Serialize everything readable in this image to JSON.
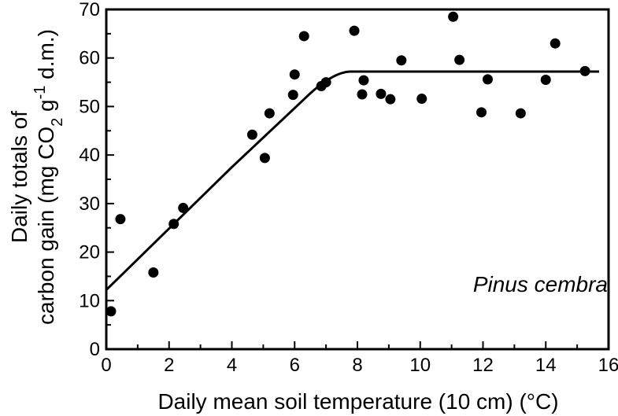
{
  "chart_data": {
    "type": "scatter",
    "title": "",
    "xlabel": "Daily mean soil temperature  (10 cm) (°C)",
    "ylabel_line1": "Daily totals of",
    "ylabel_line2": {
      "part1": "carbon gain (mg CO",
      "sub": "2",
      "part2": " g",
      "sup": "-1",
      "part3": " d.m.)"
    },
    "annotation": "Pinus cembra",
    "xlim": [
      0,
      16
    ],
    "ylim": [
      0,
      70
    ],
    "xticks": [
      0,
      2,
      4,
      6,
      8,
      10,
      12,
      14,
      16
    ],
    "yticks": [
      0,
      10,
      20,
      30,
      40,
      50,
      60,
      70
    ],
    "grid": false,
    "points": [
      {
        "x": 0.15,
        "y": 7.8
      },
      {
        "x": 0.45,
        "y": 26.8
      },
      {
        "x": 1.5,
        "y": 15.8
      },
      {
        "x": 2.15,
        "y": 25.8
      },
      {
        "x": 2.45,
        "y": 29.1
      },
      {
        "x": 4.65,
        "y": 44.2
      },
      {
        "x": 5.05,
        "y": 39.4
      },
      {
        "x": 5.2,
        "y": 48.6
      },
      {
        "x": 5.95,
        "y": 52.4
      },
      {
        "x": 6.0,
        "y": 56.6
      },
      {
        "x": 6.3,
        "y": 64.5
      },
      {
        "x": 6.85,
        "y": 54.2
      },
      {
        "x": 7.0,
        "y": 55.0
      },
      {
        "x": 7.9,
        "y": 65.6
      },
      {
        "x": 8.15,
        "y": 52.5
      },
      {
        "x": 8.2,
        "y": 55.4
      },
      {
        "x": 8.75,
        "y": 52.6
      },
      {
        "x": 9.05,
        "y": 51.5
      },
      {
        "x": 9.4,
        "y": 59.5
      },
      {
        "x": 10.05,
        "y": 51.6
      },
      {
        "x": 11.05,
        "y": 68.5
      },
      {
        "x": 11.25,
        "y": 59.6
      },
      {
        "x": 11.95,
        "y": 48.8
      },
      {
        "x": 12.15,
        "y": 55.6
      },
      {
        "x": 13.2,
        "y": 48.6
      },
      {
        "x": 14.0,
        "y": 55.5
      },
      {
        "x": 14.3,
        "y": 63.0
      },
      {
        "x": 15.25,
        "y": 57.3
      }
    ],
    "fit_line": {
      "segments": [
        {
          "x": 0,
          "y": 12.2
        },
        {
          "x": 4.0,
          "y": 37.5
        },
        {
          "x": 6.3,
          "y": 51.5
        },
        {
          "x": 7.8,
          "y": 57.2
        },
        {
          "x": 15.7,
          "y": 57.2
        }
      ]
    }
  }
}
